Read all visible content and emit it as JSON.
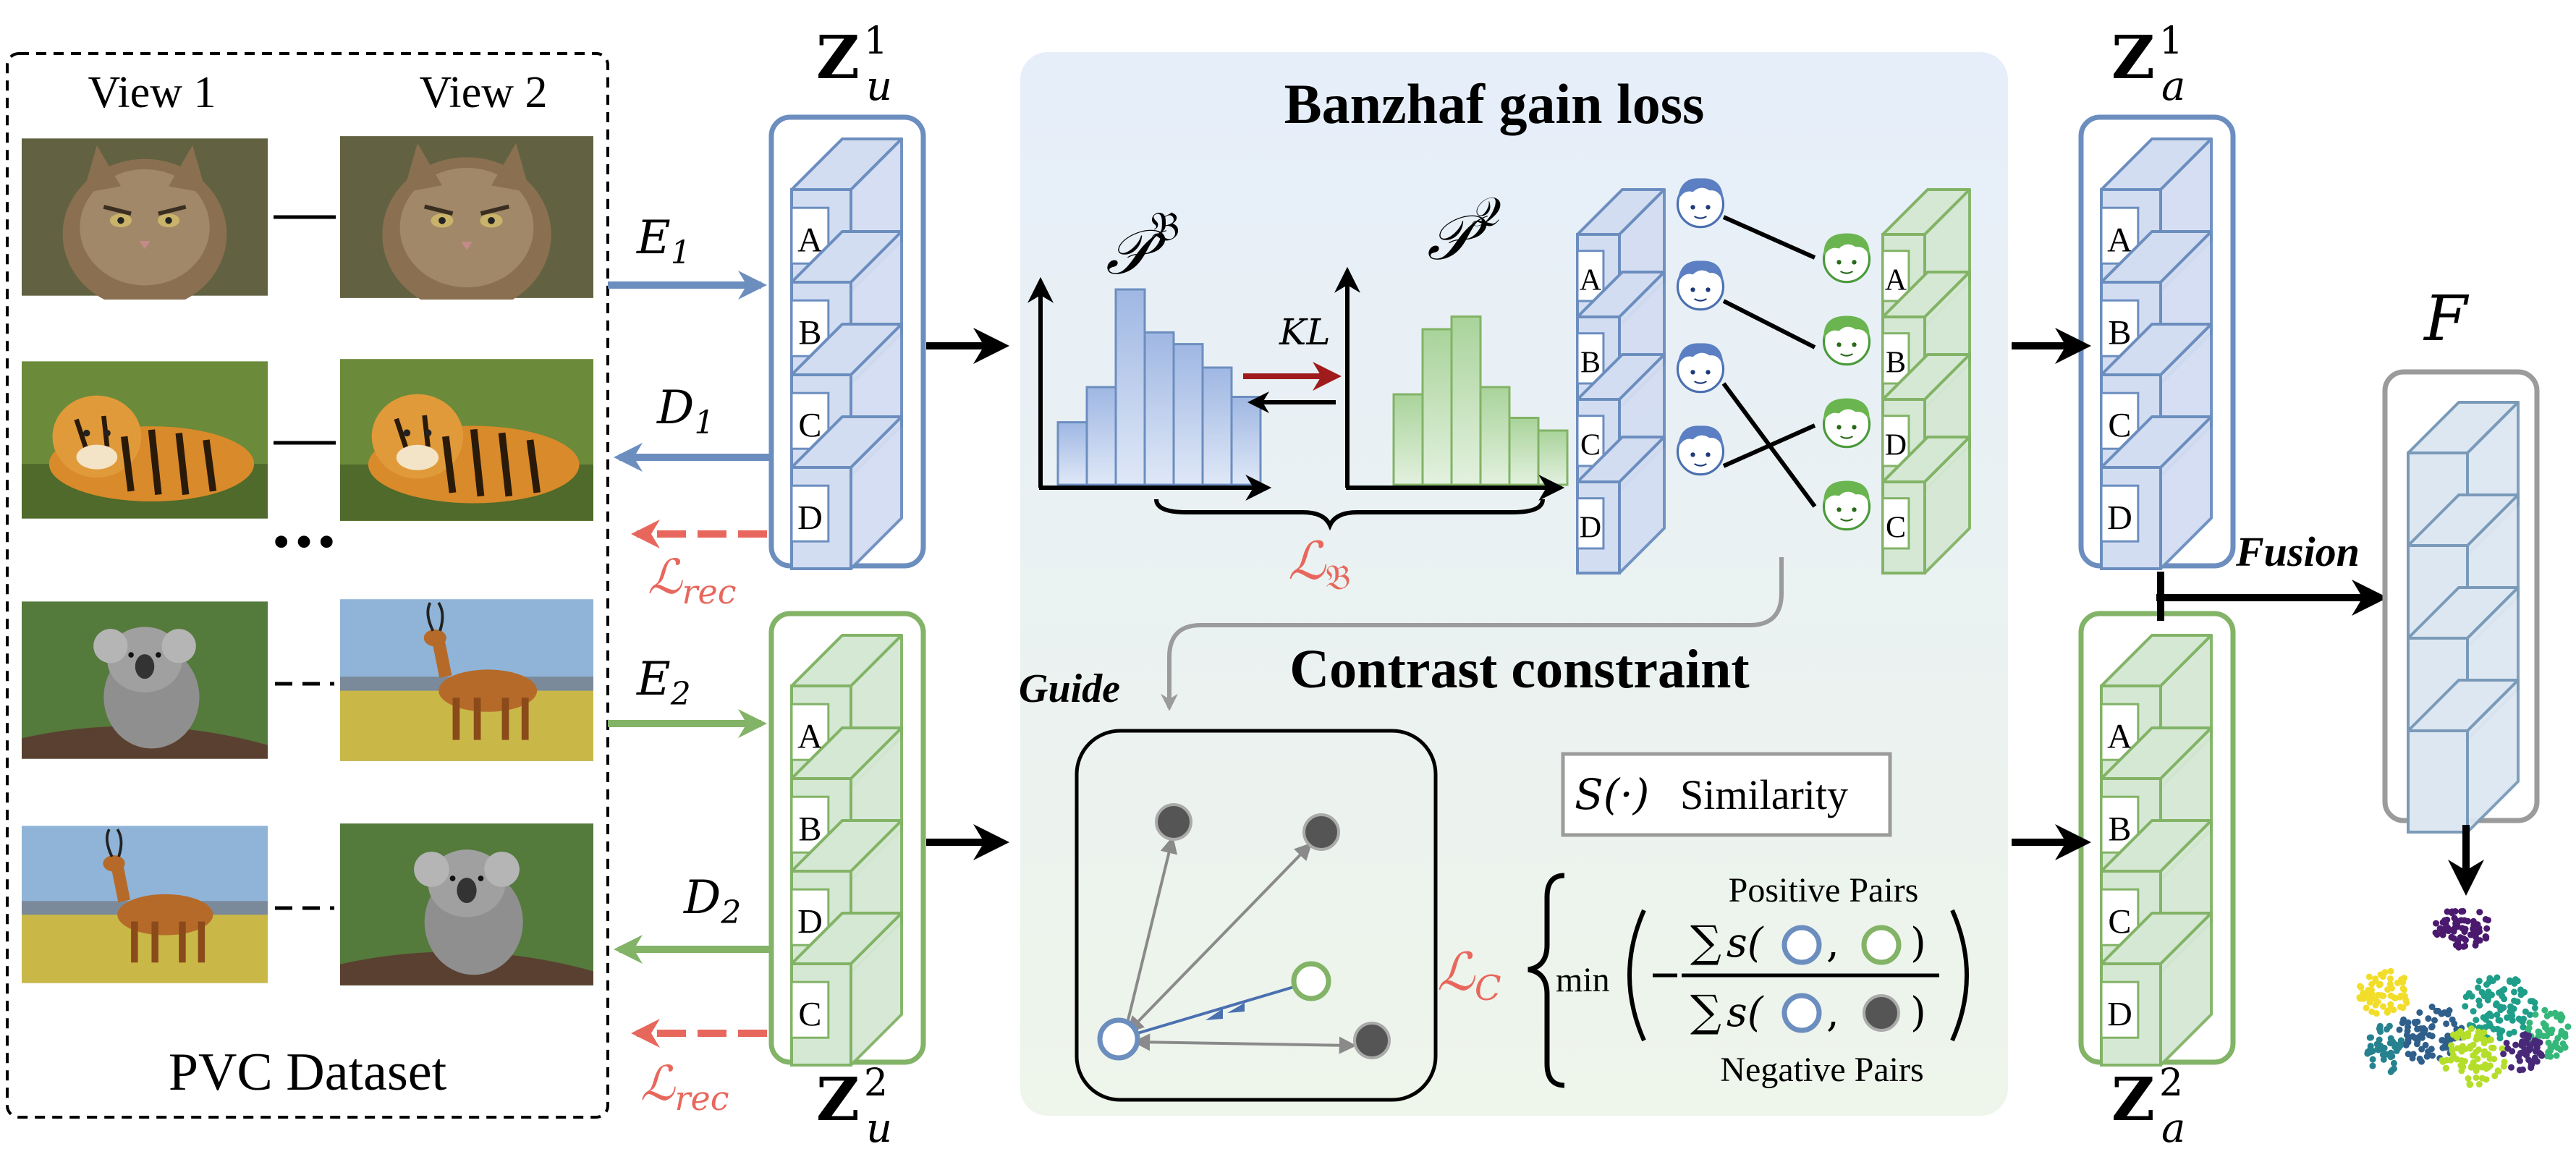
{
  "dataset": {
    "view1_label": "View 1",
    "view2_label": "View 2",
    "title": "PVC Dataset",
    "ellipsis": "···",
    "rows": [
      {
        "name": "cat",
        "view1": "cat-photo",
        "view2": "cat-photo",
        "aligned": true
      },
      {
        "name": "tiger",
        "view1": "tiger-photo",
        "view2": "tiger-photo",
        "aligned": true
      },
      {
        "name": "koala",
        "view1": "koala-photo",
        "view2": "antelope-photo",
        "aligned": false
      },
      {
        "name": "antelope",
        "view1": "antelope-photo",
        "view2": "koala-photo",
        "aligned": false
      }
    ]
  },
  "encoders": {
    "e1": {
      "base": "E",
      "sub": "1"
    },
    "d1": {
      "base": "D",
      "sub": "1"
    },
    "e2": {
      "base": "E",
      "sub": "2"
    },
    "d2": {
      "base": "D",
      "sub": "2"
    },
    "rec1": {
      "base": "ℒ",
      "sub": "rec"
    },
    "rec2": {
      "base": "ℒ",
      "sub": "rec"
    }
  },
  "latents": {
    "zu1": {
      "base": "Z",
      "sub": "u",
      "sup": "1",
      "blocks": [
        "A",
        "B",
        "C",
        "D"
      ]
    },
    "zu2": {
      "base": "Z",
      "sub": "u",
      "sup": "2",
      "blocks": [
        "A",
        "B",
        "D",
        "C"
      ]
    },
    "za1": {
      "base": "Z",
      "sub": "a",
      "sup": "1",
      "blocks": [
        "A",
        "B",
        "C",
        "D"
      ]
    },
    "za2": {
      "base": "Z",
      "sub": "a",
      "sup": "2",
      "blocks": [
        "A",
        "B",
        "C",
        "D"
      ]
    }
  },
  "banzhaf": {
    "title": "Banzhaf gain loss",
    "dist_b": "𝒫",
    "dist_b_sup": "𝔅",
    "dist_q": "𝒫",
    "dist_q_sup": "𝒬",
    "kl": "KL",
    "loss": {
      "base": "ℒ",
      "sub": "𝔅"
    },
    "left_blocks": [
      "A",
      "B",
      "C",
      "D"
    ],
    "right_blocks": [
      "A",
      "B",
      "D",
      "C"
    ],
    "hist_b": [
      0.32,
      0.5,
      1.0,
      0.78,
      0.72,
      0.6,
      0.45
    ],
    "hist_q": [
      0.5,
      0.86,
      0.93,
      0.54,
      0.37,
      0.3
    ]
  },
  "contrast": {
    "title": "Contrast constraint",
    "guide": "Guide",
    "similarity_symbol": "S(·)",
    "similarity_label": "Similarity",
    "loss": {
      "base": "ℒ",
      "sub": "C"
    },
    "min": "min",
    "positive": "Positive Pairs",
    "negative": "Negative Pairs"
  },
  "fusion": {
    "label": "Fusion",
    "output": "F"
  },
  "colors": {
    "blue": "#6c8ebf",
    "blue_fill": "#d3ddf2",
    "green": "#82b366",
    "green_fill": "#d5e8d4",
    "red": "#e8675c",
    "panel": "#eaf0f6",
    "gray": "#9b9b9b"
  }
}
